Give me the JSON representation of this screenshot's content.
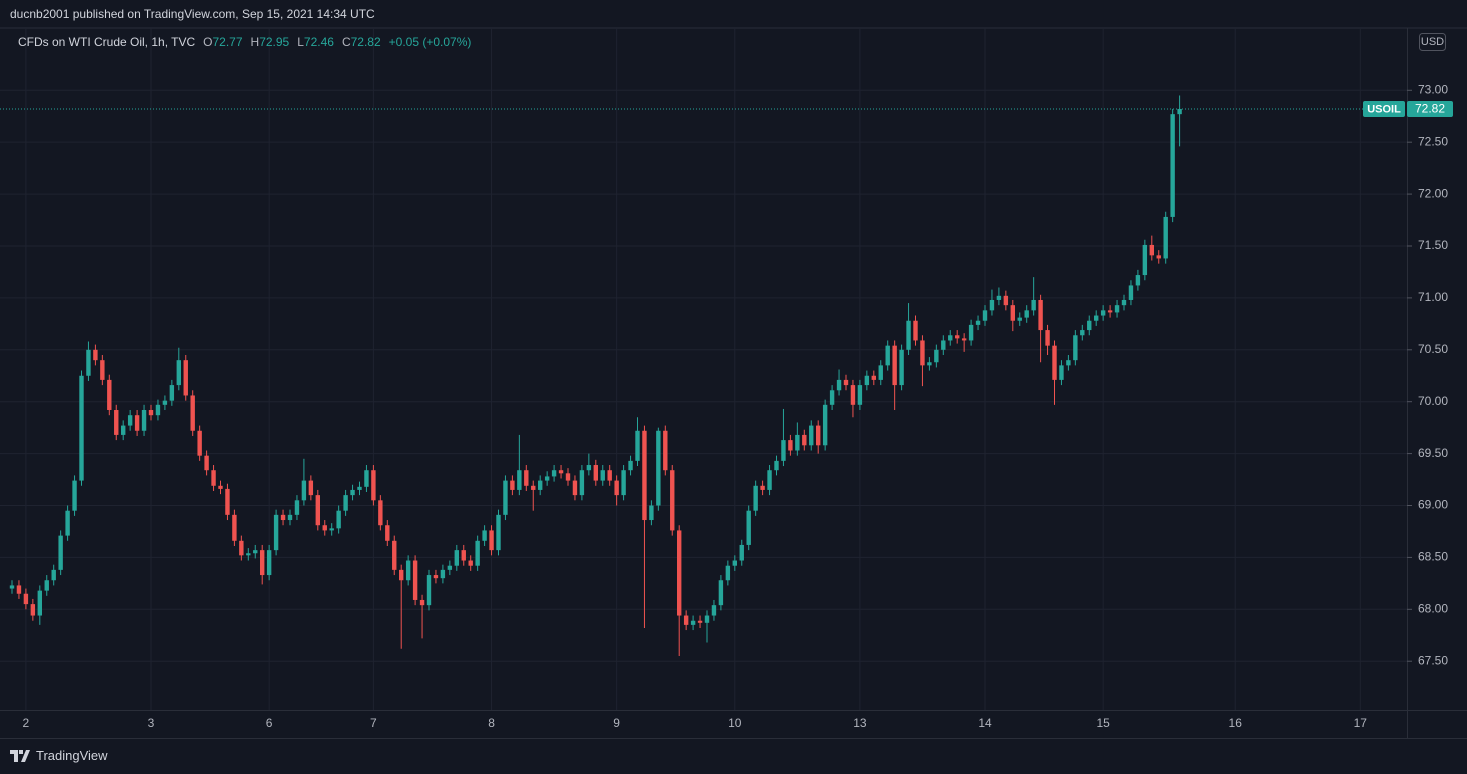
{
  "header": {
    "text": "ducnb2001 published on TradingView.com, Sep 15, 2021 14:34 UTC"
  },
  "footer": {
    "brand": "TradingView"
  },
  "chart_data": {
    "type": "candlestick",
    "title": "CFDs on WTI Crude Oil, 1h, TVC",
    "ohlc_labels": [
      "O",
      "H",
      "L",
      "C"
    ],
    "change_label": "+0.05 (+0.07%)",
    "symbol": "USOIL",
    "currency": "USD",
    "up_color": "#26a69a",
    "down_color": "#ef5350",
    "grid": true,
    "ylim": [
      67.03,
      73.6
    ],
    "yticks": [
      {
        "value": 67.5,
        "label": "67.50"
      },
      {
        "value": 68,
        "label": "68.00"
      },
      {
        "value": 68.5,
        "label": "68.50"
      },
      {
        "value": 69,
        "label": "69.00"
      },
      {
        "value": 69.5,
        "label": "69.50"
      },
      {
        "value": 70,
        "label": "70.00"
      },
      {
        "value": 70.5,
        "label": "70.50"
      },
      {
        "value": 71,
        "label": "71.00"
      },
      {
        "value": 71.5,
        "label": "71.50"
      },
      {
        "value": 72,
        "label": "72.00"
      },
      {
        "value": 72.5,
        "label": "72.50"
      },
      {
        "value": 73,
        "label": "73.00"
      }
    ],
    "categories": [
      null,
      null,
      "2",
      null,
      null,
      null,
      null,
      null,
      null,
      null,
      null,
      null,
      null,
      null,
      null,
      null,
      null,
      null,
      null,
      null,
      "3",
      null,
      null,
      null,
      null,
      null,
      null,
      null,
      null,
      null,
      null,
      null,
      null,
      null,
      null,
      null,
      null,
      "6",
      null,
      null,
      null,
      null,
      null,
      null,
      null,
      null,
      null,
      null,
      null,
      null,
      null,
      null,
      "7",
      null,
      null,
      null,
      null,
      null,
      null,
      null,
      null,
      null,
      null,
      null,
      null,
      null,
      null,
      null,
      null,
      "8",
      null,
      null,
      null,
      null,
      null,
      null,
      null,
      null,
      null,
      null,
      null,
      null,
      null,
      null,
      null,
      null,
      null,
      "9",
      null,
      null,
      null,
      null,
      null,
      null,
      null,
      null,
      null,
      null,
      null,
      null,
      null,
      null,
      null,
      null,
      "10",
      null,
      null,
      null,
      null,
      null,
      null,
      null,
      null,
      null,
      null,
      null,
      null,
      null,
      null,
      null,
      null,
      null,
      "13",
      null,
      null,
      null,
      null,
      null,
      null,
      null,
      null,
      null,
      null,
      null,
      null,
      null,
      null,
      null,
      null,
      null,
      "14",
      null,
      null,
      null,
      null,
      null,
      null,
      null,
      null,
      null,
      null,
      null,
      null,
      null,
      null,
      null,
      null,
      "15",
      null,
      null,
      null,
      null,
      null,
      null,
      null,
      null,
      null,
      null,
      null,
      null,
      null,
      null,
      null,
      null,
      null,
      null,
      "16",
      null,
      null,
      null,
      null,
      null,
      null,
      null,
      null,
      null,
      null,
      null,
      null,
      null,
      null,
      null,
      null,
      null,
      "17"
    ],
    "open": [
      68.2,
      68.23,
      68.15,
      68.05,
      67.94,
      68.18,
      68.28,
      68.38,
      68.71,
      68.95,
      69.24,
      70.25,
      70.5,
      70.4,
      70.21,
      69.92,
      69.68,
      69.77,
      69.87,
      69.72,
      69.92,
      69.87,
      69.97,
      70.01,
      70.16,
      70.4,
      70.06,
      69.72,
      69.48,
      69.34,
      69.19,
      69.16,
      68.91,
      68.66,
      68.52,
      68.54,
      68.57,
      68.33,
      68.57,
      68.91,
      68.86,
      68.91,
      69.05,
      69.24,
      69.1,
      68.81,
      68.76,
      68.78,
      68.95,
      69.1,
      69.15,
      69.18,
      69.34,
      69.05,
      68.81,
      68.66,
      68.38,
      68.28,
      68.47,
      68.09,
      68.04,
      68.33,
      68.3,
      68.38,
      68.42,
      68.57,
      68.47,
      68.42,
      68.66,
      68.76,
      68.57,
      68.91,
      69.24,
      69.15,
      69.34,
      69.19,
      69.15,
      69.24,
      69.28,
      69.34,
      69.31,
      69.24,
      69.1,
      69.34,
      69.39,
      69.24,
      69.34,
      69.24,
      69.1,
      69.34,
      69.43,
      69.72,
      68.86,
      69.0,
      69.72,
      69.34,
      68.76,
      67.94,
      67.85,
      67.89,
      67.87,
      67.94,
      68.04,
      68.28,
      68.42,
      68.47,
      68.62,
      68.95,
      69.19,
      69.15,
      69.34,
      69.43,
      69.63,
      69.53,
      69.68,
      69.58,
      69.77,
      69.58,
      69.97,
      70.11,
      70.21,
      70.16,
      69.97,
      70.16,
      70.25,
      70.21,
      70.35,
      70.54,
      70.16,
      70.5,
      70.78,
      70.59,
      70.35,
      70.38,
      70.5,
      70.59,
      70.64,
      70.61,
      70.59,
      70.74,
      70.78,
      70.88,
      70.98,
      71.02,
      70.93,
      70.78,
      70.81,
      70.88,
      70.98,
      70.69,
      70.54,
      70.21,
      70.35,
      70.4,
      70.64,
      70.69,
      70.78,
      70.83,
      70.88,
      70.86,
      70.93,
      70.98,
      71.12,
      71.22,
      71.51,
      71.41,
      71.38,
      71.78,
      72.77,
      null,
      null,
      null,
      null,
      null,
      null,
      null,
      null,
      null,
      null,
      null,
      null,
      null,
      null,
      null,
      null,
      null,
      null,
      null,
      null,
      null,
      null,
      null,
      null,
      null,
      null
    ],
    "high": [
      68.28,
      68.28,
      68.2,
      68.1,
      68.23,
      68.33,
      68.43,
      68.76,
      69.0,
      69.29,
      70.3,
      70.58,
      70.55,
      70.45,
      70.26,
      69.97,
      69.82,
      69.92,
      69.92,
      69.97,
      69.97,
      70.02,
      70.06,
      70.21,
      70.52,
      70.45,
      70.11,
      69.77,
      69.53,
      69.39,
      69.24,
      69.21,
      68.96,
      68.71,
      68.59,
      68.62,
      68.62,
      68.62,
      68.96,
      68.96,
      68.96,
      69.1,
      69.45,
      69.29,
      69.15,
      68.86,
      68.83,
      69.0,
      69.15,
      69.2,
      69.23,
      69.39,
      69.39,
      69.1,
      68.86,
      68.71,
      68.43,
      68.52,
      68.52,
      68.14,
      68.38,
      68.38,
      68.43,
      68.47,
      68.62,
      68.62,
      68.52,
      68.71,
      68.81,
      68.81,
      68.96,
      69.29,
      69.29,
      69.68,
      69.39,
      69.24,
      69.29,
      69.33,
      69.39,
      69.39,
      69.36,
      69.29,
      69.39,
      69.5,
      69.44,
      69.39,
      69.39,
      69.29,
      69.39,
      69.48,
      69.85,
      69.77,
      69.05,
      69.75,
      69.77,
      69.39,
      68.81,
      67.99,
      67.94,
      67.94,
      67.99,
      68.09,
      68.33,
      68.47,
      68.52,
      68.67,
      69.0,
      69.24,
      69.24,
      69.39,
      69.48,
      69.93,
      69.68,
      69.8,
      69.73,
      69.82,
      69.82,
      70.02,
      70.16,
      70.31,
      70.26,
      70.21,
      70.21,
      70.3,
      70.3,
      70.4,
      70.59,
      70.59,
      70.55,
      70.95,
      70.83,
      70.64,
      70.43,
      70.55,
      70.64,
      70.69,
      70.69,
      70.66,
      70.79,
      70.83,
      70.93,
      71.08,
      71.1,
      71.07,
      70.98,
      70.86,
      70.93,
      71.2,
      71.03,
      70.74,
      70.59,
      70.4,
      70.45,
      70.69,
      70.74,
      70.83,
      70.88,
      70.93,
      70.93,
      70.98,
      71.03,
      71.17,
      71.27,
      71.56,
      71.6,
      71.46,
      71.83,
      72.82,
      72.95,
      null,
      null,
      null,
      null,
      null,
      null,
      null,
      null,
      null,
      null,
      null,
      null,
      null,
      null,
      null,
      null,
      null,
      null,
      null,
      null,
      null,
      null,
      null,
      null,
      null,
      null
    ],
    "low": [
      68.15,
      68.1,
      68.0,
      67.89,
      67.85,
      68.13,
      68.23,
      68.33,
      68.66,
      68.9,
      69.19,
      70.2,
      70.35,
      70.16,
      69.87,
      69.63,
      69.63,
      69.72,
      69.67,
      69.67,
      69.82,
      69.82,
      69.92,
      69.96,
      70.11,
      70.01,
      69.67,
      69.43,
      69.29,
      69.14,
      69.11,
      68.86,
      68.61,
      68.47,
      68.47,
      68.49,
      68.24,
      68.28,
      68.52,
      68.81,
      68.81,
      68.86,
      69.0,
      69.05,
      68.76,
      68.71,
      68.71,
      68.73,
      68.9,
      69.05,
      69.1,
      69.13,
      69.0,
      68.76,
      68.61,
      68.33,
      67.62,
      68.23,
      68.04,
      67.72,
      67.99,
      68.25,
      68.25,
      68.33,
      68.37,
      68.42,
      68.37,
      68.37,
      68.61,
      68.52,
      68.52,
      68.86,
      69.1,
      69.1,
      69.14,
      68.95,
      69.1,
      69.19,
      69.23,
      69.26,
      69.19,
      69.05,
      69.05,
      69.29,
      69.19,
      69.19,
      69.19,
      69.0,
      69.05,
      69.29,
      69.38,
      67.82,
      68.81,
      68.95,
      69.29,
      68.71,
      67.55,
      67.8,
      67.8,
      67.82,
      67.68,
      67.89,
      67.99,
      68.23,
      68.37,
      68.42,
      68.57,
      68.9,
      69.1,
      69.1,
      69.29,
      69.38,
      69.48,
      69.48,
      69.53,
      69.53,
      69.5,
      69.53,
      69.92,
      70.06,
      70.11,
      69.85,
      69.92,
      70.11,
      70.16,
      70.16,
      70.3,
      69.92,
      70.11,
      70.45,
      70.54,
      70.15,
      70.3,
      70.33,
      70.45,
      70.54,
      70.56,
      70.48,
      70.54,
      70.69,
      70.73,
      70.83,
      70.93,
      70.88,
      70.68,
      70.73,
      70.76,
      70.83,
      70.38,
      70.45,
      69.97,
      70.16,
      70.3,
      70.35,
      70.59,
      70.64,
      70.73,
      70.78,
      70.81,
      70.81,
      70.88,
      70.93,
      71.07,
      71.17,
      71.36,
      71.33,
      71.33,
      71.73,
      72.46,
      null,
      null,
      null,
      null,
      null,
      null,
      null,
      null,
      null,
      null,
      null,
      null,
      null,
      null,
      null,
      null,
      null,
      null,
      null,
      null,
      null,
      null,
      null,
      null,
      null,
      null
    ],
    "close": [
      68.23,
      68.15,
      68.05,
      67.94,
      68.18,
      68.28,
      68.38,
      68.71,
      68.95,
      69.24,
      70.25,
      70.5,
      70.4,
      70.21,
      69.92,
      69.68,
      69.77,
      69.87,
      69.72,
      69.92,
      69.87,
      69.97,
      70.01,
      70.16,
      70.4,
      70.06,
      69.72,
      69.48,
      69.34,
      69.19,
      69.16,
      68.91,
      68.66,
      68.52,
      68.54,
      68.57,
      68.33,
      68.57,
      68.91,
      68.86,
      68.91,
      69.05,
      69.24,
      69.1,
      68.81,
      68.76,
      68.78,
      68.95,
      69.1,
      69.15,
      69.18,
      69.34,
      69.05,
      68.81,
      68.66,
      68.38,
      68.28,
      68.47,
      68.09,
      68.04,
      68.33,
      68.3,
      68.38,
      68.42,
      68.57,
      68.47,
      68.42,
      68.66,
      68.76,
      68.57,
      68.91,
      69.24,
      69.15,
      69.34,
      69.19,
      69.15,
      69.24,
      69.28,
      69.34,
      69.31,
      69.24,
      69.1,
      69.34,
      69.39,
      69.24,
      69.34,
      69.24,
      69.1,
      69.34,
      69.43,
      69.72,
      68.86,
      69.0,
      69.72,
      69.34,
      68.76,
      67.94,
      67.85,
      67.89,
      67.87,
      67.94,
      68.04,
      68.28,
      68.42,
      68.47,
      68.62,
      68.95,
      69.19,
      69.15,
      69.34,
      69.43,
      69.63,
      69.53,
      69.68,
      69.58,
      69.77,
      69.58,
      69.97,
      70.11,
      70.21,
      70.16,
      69.97,
      70.16,
      70.25,
      70.21,
      70.35,
      70.54,
      70.16,
      70.5,
      70.78,
      70.59,
      70.35,
      70.38,
      70.5,
      70.59,
      70.64,
      70.61,
      70.59,
      70.74,
      70.78,
      70.88,
      70.98,
      71.02,
      70.93,
      70.78,
      70.81,
      70.88,
      70.98,
      70.69,
      70.54,
      70.21,
      70.35,
      70.4,
      70.64,
      70.69,
      70.78,
      70.83,
      70.88,
      70.86,
      70.93,
      70.98,
      71.12,
      71.22,
      71.51,
      71.41,
      71.38,
      71.78,
      72.77,
      72.82,
      null,
      null,
      null,
      null,
      null,
      null,
      null,
      null,
      null,
      null,
      null,
      null,
      null,
      null,
      null,
      null,
      null,
      null,
      null,
      null,
      null,
      null,
      null,
      null,
      null,
      null
    ]
  }
}
